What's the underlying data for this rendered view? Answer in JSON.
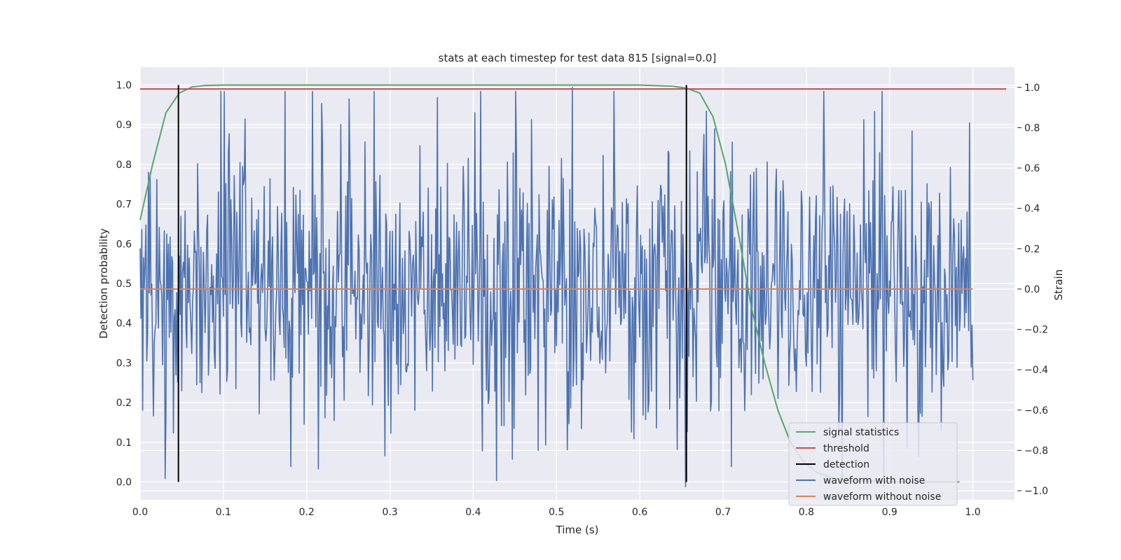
{
  "chart_data": {
    "type": "line",
    "title": "stats at each timestep for test data 815 [signal=0.0]",
    "xlabel": "Time (s)",
    "ylabel_left": "Detection probability",
    "ylabel_right": "Strain",
    "xlim": [
      0.0,
      1.05
    ],
    "ylim_left": [
      -0.045,
      1.045
    ],
    "ylim_right": [
      -1.045,
      1.1
    ],
    "x_ticks": [
      "0.0",
      "0.1",
      "0.2",
      "0.3",
      "0.4",
      "0.5",
      "0.6",
      "0.7",
      "0.8",
      "0.9",
      "1.0"
    ],
    "y_ticks_left": [
      "0.0",
      "0.1",
      "0.2",
      "0.3",
      "0.4",
      "0.5",
      "0.6",
      "0.7",
      "0.8",
      "0.9",
      "1.0"
    ],
    "y_ticks_right": [
      "−1.0",
      "−0.8",
      "−0.6",
      "−0.4",
      "−0.2",
      "0.0",
      "0.2",
      "0.4",
      "0.6",
      "0.8",
      "1.0"
    ],
    "grid": true,
    "legend_placement": "bottom-right",
    "colors": {
      "signal_statistics": "#55a868",
      "threshold": "#c44e52",
      "detection": "#000000",
      "waveform_with_noise": "#4c72b0",
      "waveform_without_noise": "#dd8452",
      "axes_background": "#eaeaf2",
      "grid": "#ffffff"
    },
    "series": [
      {
        "name": "signal statistics",
        "axis": "left",
        "x": [
          0.0,
          0.015,
          0.031,
          0.047,
          0.062,
          0.078,
          0.1,
          0.2,
          0.3,
          0.4,
          0.5,
          0.6,
          0.64,
          0.656,
          0.672,
          0.688,
          0.703,
          0.719,
          0.734,
          0.75,
          0.766,
          0.781,
          0.797,
          0.812,
          0.828,
          0.844,
          0.86,
          0.9,
          0.95,
          0.984
        ],
        "y": [
          0.66,
          0.8,
          0.93,
          0.98,
          0.995,
          0.999,
          1.0,
          1.0,
          1.0,
          1.0,
          1.0,
          1.0,
          0.997,
          0.992,
          0.98,
          0.92,
          0.8,
          0.62,
          0.44,
          0.3,
          0.18,
          0.1,
          0.05,
          0.025,
          0.012,
          0.006,
          0.003,
          0.001,
          0.0,
          0.0
        ]
      },
      {
        "name": "threshold",
        "axis": "left",
        "x": [
          0.0,
          1.04
        ],
        "y": [
          0.99,
          0.99
        ]
      },
      {
        "name": "detection",
        "axis": "left",
        "x": [
          0.046,
          0.656
        ],
        "y_range": [
          0.0,
          1.0
        ]
      },
      {
        "name": "waveform with noise",
        "axis": "right",
        "x_range": [
          0.0,
          1.0
        ],
        "sample_count": 1000,
        "peaks": [
          {
            "x": 0.218,
            "y": 0.92
          },
          {
            "x": 0.428,
            "y": -0.95
          },
          {
            "x": 0.47,
            "y": 0.84
          },
          {
            "x": 0.519,
            "y": 1.0
          },
          {
            "x": 0.107,
            "y": 0.77
          },
          {
            "x": 0.181,
            "y": -0.88
          },
          {
            "x": 0.03,
            "y": -0.94
          },
          {
            "x": 0.71,
            "y": -0.88
          },
          {
            "x": 0.882,
            "y": 0.88
          }
        ],
        "amplitude_std": 0.33
      },
      {
        "name": "waveform without noise",
        "axis": "right",
        "x": [
          0.0,
          1.0
        ],
        "y": [
          0.0,
          0.0
        ]
      }
    ]
  }
}
